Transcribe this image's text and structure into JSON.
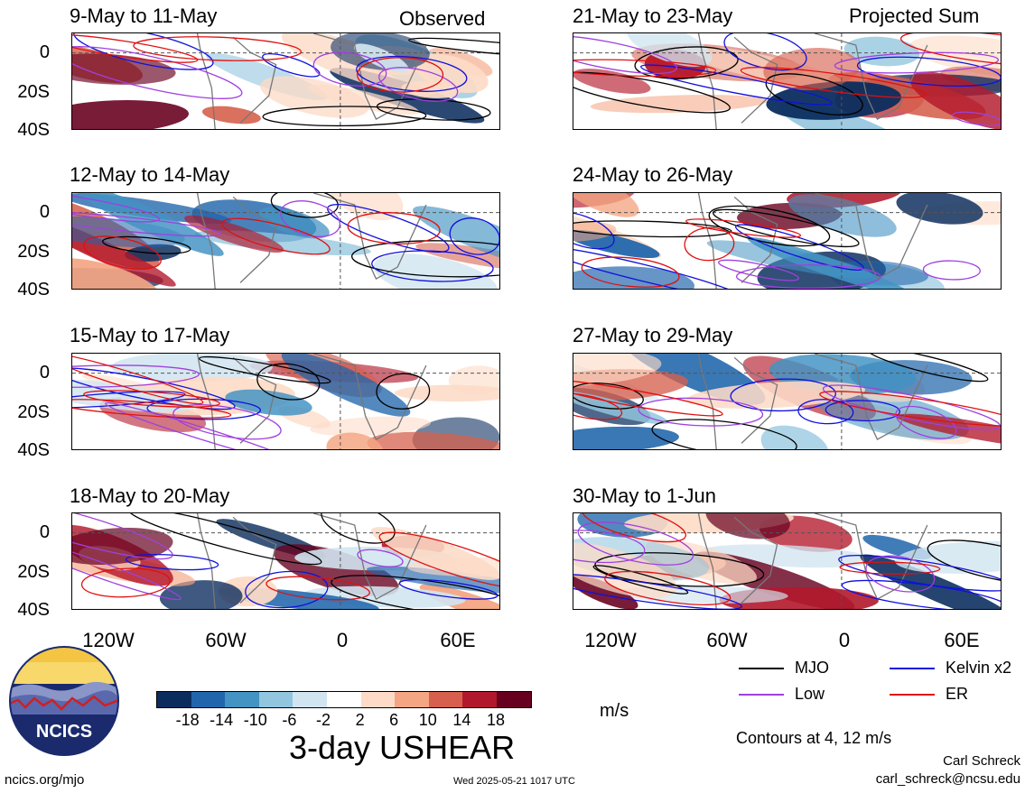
{
  "header": {
    "observed_label": "Observed",
    "projected_label": "Projected Sum"
  },
  "panels": [
    {
      "title": "9-May to 11-May"
    },
    {
      "title": "12-May to 14-May"
    },
    {
      "title": "15-May to 17-May"
    },
    {
      "title": "18-May to 20-May"
    },
    {
      "title": "21-May to 23-May"
    },
    {
      "title": "24-May to 26-May"
    },
    {
      "title": "27-May to 29-May"
    },
    {
      "title": "30-May to 1-Jun"
    }
  ],
  "axes": {
    "lat_ticks": [
      "0",
      "20S",
      "40S"
    ],
    "lon_ticks": [
      "120W",
      "60W",
      "0",
      "60E"
    ]
  },
  "colorbar": {
    "ticks": [
      "-18",
      "-14",
      "-10",
      "-6",
      "-2",
      "2",
      "6",
      "10",
      "14",
      "18"
    ],
    "colors": [
      "#0b2d5e",
      "#2166ac",
      "#4393c3",
      "#92c5de",
      "#d1e5f0",
      "#ffffff",
      "#fddbc7",
      "#f4a582",
      "#d6604d",
      "#b2182b",
      "#67001f"
    ],
    "unit": "m/s",
    "field_title": "3-day USHEAR"
  },
  "legend": {
    "items": [
      {
        "label": "MJO",
        "color": "#000000"
      },
      {
        "label": "Kelvin x2",
        "color": "#1010dd"
      },
      {
        "label": "Low",
        "color": "#a040e0"
      },
      {
        "label": "ER",
        "color": "#e01010"
      }
    ],
    "contour_note": "Contours at 4, 12 m/s"
  },
  "footer": {
    "website": "ncics.org/mjo",
    "timestamp": "Wed 2025-05-21 1017 UTC",
    "author": "Carl Schreck",
    "email": "carl_schreck@ncsu.edu",
    "logo_text": "NCICS"
  },
  "chart_data": {
    "type": "heatmap",
    "title": "3-day USHEAR",
    "unit": "m/s",
    "x_range": [
      "120W",
      "60E"
    ],
    "y_range": [
      "10N",
      "40S"
    ],
    "contour_levels": [
      4,
      12
    ],
    "color_levels": [
      -18,
      -14,
      -10,
      -6,
      -2,
      2,
      6,
      10,
      14,
      18
    ],
    "series": [
      {
        "name": "MJO"
      },
      {
        "name": "Kelvin x2"
      },
      {
        "name": "Low"
      },
      {
        "name": "ER"
      }
    ]
  }
}
